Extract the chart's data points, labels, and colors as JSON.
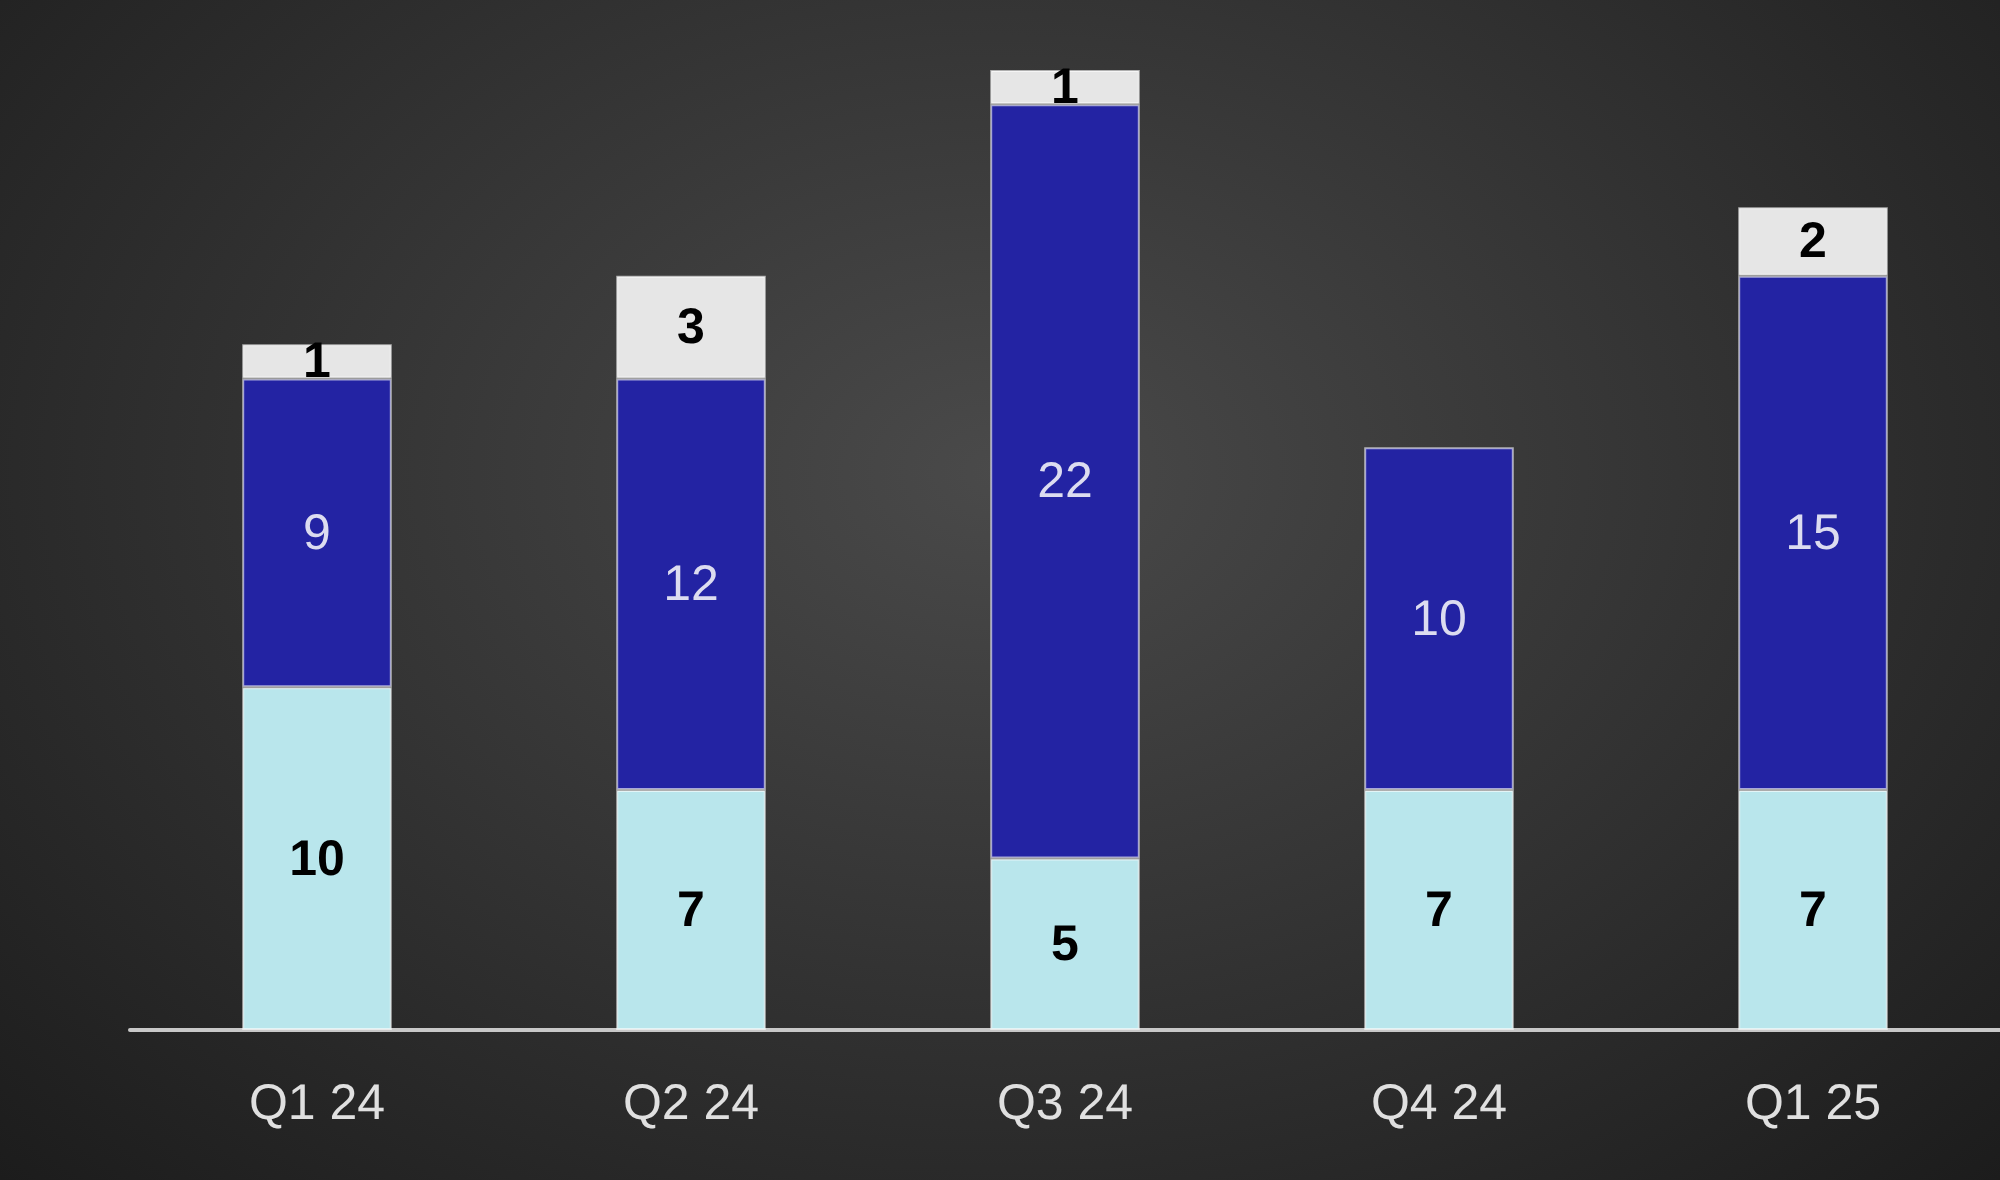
{
  "chart_data": {
    "type": "bar",
    "stacked": true,
    "data_labels": true,
    "categories": [
      "Q1 24",
      "Q2 24",
      "Q3 24",
      "Q4 24",
      "Q1 25"
    ],
    "series": [
      {
        "color": "#b9e6ec",
        "values": [
          10,
          7,
          5,
          7,
          7
        ]
      },
      {
        "color": "#2323a3",
        "values": [
          9,
          12,
          22,
          10,
          15
        ]
      },
      {
        "color": "#e6e6e6",
        "values": [
          1,
          3,
          1,
          null,
          2
        ]
      }
    ]
  }
}
